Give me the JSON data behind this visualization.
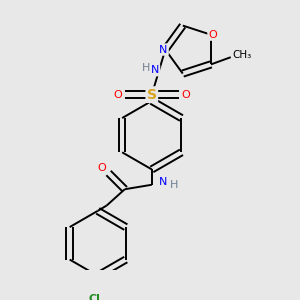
{
  "background_color": "#e8e8e8",
  "atom_colors": {
    "C": "#000000",
    "H": "#708090",
    "N": "#0000FF",
    "O": "#FF0000",
    "S": "#DAA520",
    "Cl": "#228B22"
  },
  "bond_color": "#000000",
  "figsize": [
    3.0,
    3.0
  ],
  "dpi": 100
}
